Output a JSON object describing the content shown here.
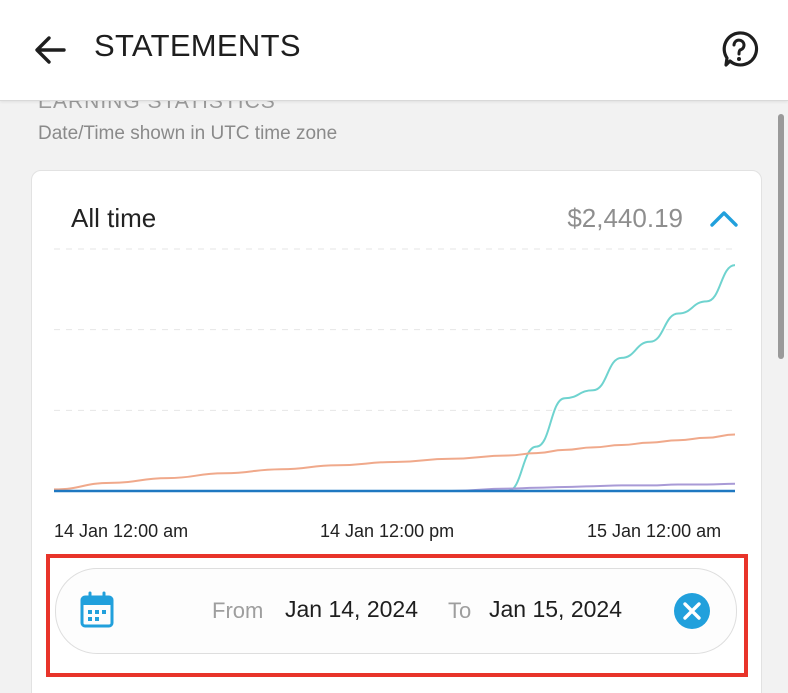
{
  "header": {
    "title": "STATEMENTS",
    "back_icon": "arrow-left-icon",
    "help_icon": "help-circle-icon"
  },
  "section": {
    "heading": "EARNING STATISTICS",
    "timezone_note": "Date/Time shown in UTC time zone"
  },
  "summary": {
    "period": "All time",
    "total": "$2,440.19",
    "toggle_icon": "chevron-up-icon"
  },
  "date_filter": {
    "calendar_icon": "calendar-icon",
    "from_label": "From",
    "from_date": "Jan 14, 2024",
    "to_label": "To",
    "to_date": "Jan 15, 2024",
    "clear_icon": "close-circle-icon"
  },
  "colors": {
    "accent": "#21a0dc",
    "highlight": "#e8342a",
    "series_teal": "#6fd3cf",
    "series_orange": "#f0a98b",
    "series_purple": "#a89ad6",
    "series_blue": "#1f78c1"
  },
  "chart_data": {
    "type": "line",
    "x_tick_labels": [
      "14 Jan 12:00 am",
      "14 Jan 12:00 pm",
      "15 Jan 12:00 am"
    ],
    "x": [
      0,
      2,
      4,
      6,
      8,
      10,
      12,
      14,
      16,
      17,
      18,
      19,
      20,
      21,
      22,
      23,
      24
    ],
    "xlim": [
      0,
      24
    ],
    "ylim": [
      0,
      3
    ],
    "grid": "horizontal dashed",
    "series": [
      {
        "color": "#6fd3cf",
        "values": [
          0,
          0,
          0,
          0,
          0,
          0,
          0,
          0,
          0,
          0.55,
          1.15,
          1.25,
          1.65,
          1.85,
          2.2,
          2.35,
          2.8
        ]
      },
      {
        "color": "#f0a98b",
        "values": [
          0.02,
          0.1,
          0.16,
          0.22,
          0.27,
          0.32,
          0.36,
          0.4,
          0.44,
          0.47,
          0.51,
          0.54,
          0.57,
          0.6,
          0.63,
          0.66,
          0.7
        ]
      },
      {
        "color": "#a89ad6",
        "values": [
          0,
          0,
          0,
          0,
          0,
          0,
          0,
          0,
          0.03,
          0.04,
          0.05,
          0.06,
          0.07,
          0.07,
          0.08,
          0.08,
          0.09
        ]
      },
      {
        "color": "#1f78c1",
        "values": [
          0,
          0,
          0,
          0,
          0,
          0,
          0,
          0,
          0,
          0,
          0,
          0,
          0,
          0,
          0,
          0,
          0
        ]
      }
    ]
  }
}
